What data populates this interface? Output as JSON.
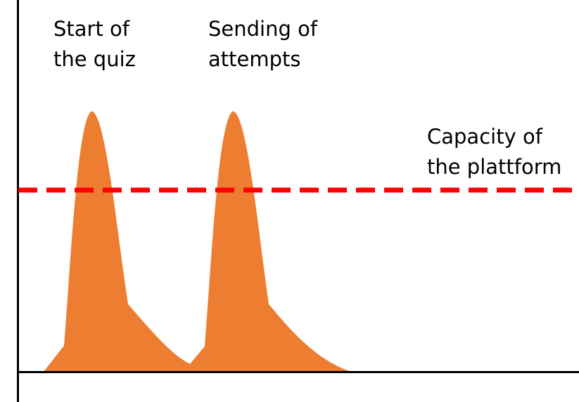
{
  "annotations": {
    "start_of_quiz": [
      "Start of",
      "the quiz"
    ],
    "sending_of_attempts": [
      "Sending of",
      "attempts"
    ],
    "capacity": [
      "Capacity of",
      "the plattform"
    ]
  },
  "colors": {
    "load_fill": "#ED7D31",
    "capacity_line": "#FF0000",
    "axis": "#000000",
    "text": "#000000"
  }
}
